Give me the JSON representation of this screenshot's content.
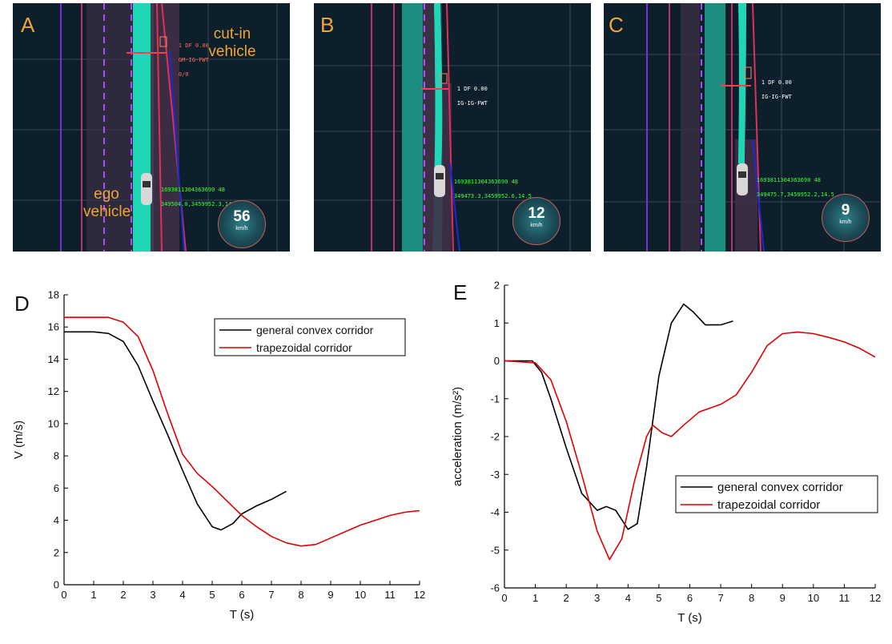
{
  "panels": [
    {
      "id": "A",
      "label": "A",
      "speed": "56",
      "unit": "km/h",
      "vehicle_id": "1693811304363690 48",
      "vehicle_coords": "349504.0,3459952.3,14.5",
      "target_text1": "1 DF 0.00",
      "target_text2": "GM-IG-FWT",
      "target_text3": "0/0",
      "annotation_cutin": "cut-in\nvehicle",
      "annotation_ego": "ego\nvehicle"
    },
    {
      "id": "B",
      "label": "B",
      "speed": "12",
      "unit": "km/h",
      "vehicle_id": "1693811304363690 48",
      "vehicle_coords": "349473.3,3459952.6,14.5",
      "target_text1": "1 DF 0.00",
      "target_text2": "IG-IG-FWT"
    },
    {
      "id": "C",
      "label": "C",
      "speed": "9",
      "unit": "km/h",
      "vehicle_id": "1693811304363690 48",
      "vehicle_coords": "349475.7,3459952.2,14.5",
      "target_text1": "1 DF 0.00",
      "target_text2": "IG-IG-FWT"
    }
  ],
  "colors": {
    "label": "#f2a534",
    "series1": "#000000",
    "series2": "#e00000",
    "corridor": "#1fd6b7"
  },
  "chart_data": [
    {
      "panel_label": "D",
      "type": "line",
      "xlabel": "T (s)",
      "ylabel": "V (m/s)",
      "xlim": [
        0,
        12
      ],
      "ylim": [
        0,
        18
      ],
      "xticks": [
        0,
        1,
        2,
        3,
        4,
        5,
        6,
        7,
        8,
        9,
        10,
        11,
        12
      ],
      "yticks": [
        0,
        2,
        4,
        6,
        8,
        10,
        12,
        14,
        16,
        18
      ],
      "legend_position": "top-right",
      "grid": false,
      "series": [
        {
          "name": "general convex corridor",
          "color": "#000000",
          "points": [
            [
              0,
              15.7
            ],
            [
              1,
              15.7
            ],
            [
              1.5,
              15.6
            ],
            [
              2,
              15.1
            ],
            [
              2.5,
              13.6
            ],
            [
              3,
              11.4
            ],
            [
              3.5,
              9.3
            ],
            [
              4,
              7.1
            ],
            [
              4.5,
              5.0
            ],
            [
              5,
              3.6
            ],
            [
              5.3,
              3.4
            ],
            [
              5.7,
              3.8
            ],
            [
              6,
              4.4
            ],
            [
              6.5,
              4.9
            ],
            [
              7,
              5.3
            ],
            [
              7.5,
              5.8
            ]
          ]
        },
        {
          "name": "trapezoidal corridor",
          "color": "#e00000",
          "points": [
            [
              0,
              16.6
            ],
            [
              1,
              16.6
            ],
            [
              1.5,
              16.6
            ],
            [
              2,
              16.3
            ],
            [
              2.5,
              15.4
            ],
            [
              3,
              13.3
            ],
            [
              3.5,
              10.6
            ],
            [
              4,
              8.1
            ],
            [
              4.5,
              6.9
            ],
            [
              5,
              6.1
            ],
            [
              5.5,
              5.2
            ],
            [
              6,
              4.3
            ],
            [
              6.5,
              3.6
            ],
            [
              7,
              3.0
            ],
            [
              7.5,
              2.6
            ],
            [
              8,
              2.4
            ],
            [
              8.5,
              2.5
            ],
            [
              9,
              2.9
            ],
            [
              9.5,
              3.3
            ],
            [
              10,
              3.7
            ],
            [
              10.5,
              4.0
            ],
            [
              11,
              4.3
            ],
            [
              11.5,
              4.5
            ],
            [
              12,
              4.6
            ]
          ]
        }
      ]
    },
    {
      "panel_label": "E",
      "type": "line",
      "xlabel": "T (s)",
      "ylabel": "acceleration (m/s²)",
      "xlim": [
        0,
        12
      ],
      "ylim": [
        -6,
        2
      ],
      "xticks": [
        0,
        1,
        2,
        3,
        4,
        5,
        6,
        7,
        8,
        9,
        10,
        11,
        12
      ],
      "yticks": [
        -6,
        -5,
        -4,
        -3,
        -2,
        -1,
        0,
        1,
        2
      ],
      "legend_position": "bottom-right",
      "grid": false,
      "series": [
        {
          "name": "general convex corridor",
          "color": "#000000",
          "points": [
            [
              0,
              0
            ],
            [
              0.9,
              0
            ],
            [
              1.2,
              -0.3
            ],
            [
              1.5,
              -1.0
            ],
            [
              2,
              -2.3
            ],
            [
              2.5,
              -3.5
            ],
            [
              3,
              -3.95
            ],
            [
              3.3,
              -3.85
            ],
            [
              3.6,
              -3.95
            ],
            [
              4,
              -4.45
            ],
            [
              4.3,
              -4.3
            ],
            [
              4.6,
              -2.8
            ],
            [
              5,
              -0.4
            ],
            [
              5.4,
              1.0
            ],
            [
              5.8,
              1.5
            ],
            [
              6.1,
              1.3
            ],
            [
              6.5,
              0.95
            ],
            [
              7,
              0.95
            ],
            [
              7.4,
              1.05
            ]
          ]
        },
        {
          "name": "trapezoidal corridor",
          "color": "#e00000",
          "points": [
            [
              0,
              0
            ],
            [
              1,
              -0.05
            ],
            [
              1.5,
              -0.5
            ],
            [
              2,
              -1.6
            ],
            [
              2.5,
              -3.0
            ],
            [
              3,
              -4.5
            ],
            [
              3.4,
              -5.25
            ],
            [
              3.8,
              -4.7
            ],
            [
              4.2,
              -3.2
            ],
            [
              4.6,
              -2.0
            ],
            [
              4.8,
              -1.7
            ],
            [
              5.1,
              -1.9
            ],
            [
              5.4,
              -2.0
            ],
            [
              5.8,
              -1.7
            ],
            [
              6.3,
              -1.35
            ],
            [
              7,
              -1.15
            ],
            [
              7.5,
              -0.9
            ],
            [
              8,
              -0.3
            ],
            [
              8.5,
              0.4
            ],
            [
              9,
              0.72
            ],
            [
              9.5,
              0.76
            ],
            [
              10,
              0.72
            ],
            [
              10.5,
              0.62
            ],
            [
              11,
              0.5
            ],
            [
              11.5,
              0.33
            ],
            [
              12,
              0.1
            ]
          ]
        }
      ]
    }
  ]
}
